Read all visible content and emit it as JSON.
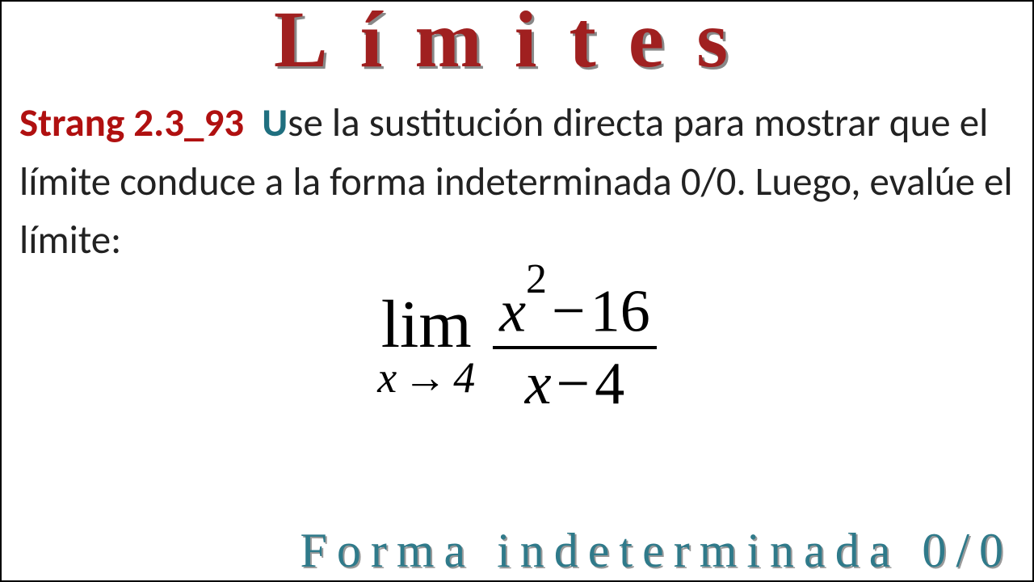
{
  "title": "Límites",
  "problem": {
    "ref": "Strang 2.3_93",
    "capU": "U",
    "rest1": "se la sustitución directa para mostrar que el límite conduce a la forma indeterminada 0/0. Luego, evalúe el límite:"
  },
  "formula": {
    "limWord": "lim",
    "var": "x",
    "arrow": "→",
    "to": "4",
    "numVar": "x",
    "numExp": "2",
    "numOp": "−",
    "numConst": "16",
    "denVar": "x",
    "denOp": "−",
    "denConst": "4"
  },
  "footer": "Forma indeterminada 0/0",
  "colors": {
    "titleColor": "#a02020",
    "titleShadow": "#888888",
    "refColor": "#b01010",
    "capUColor": "#1f6f7f",
    "bodyText": "#222222",
    "footerColor": "#2f7a8a",
    "footerShadow": "#9a9a9a",
    "background": "#ffffff",
    "border": "#000000"
  },
  "typography": {
    "titleFont": "Times New Roman",
    "titleSize": 100,
    "titleLetterSpacing": 40,
    "bodyFont": "Calibri",
    "bodySize": 49,
    "formulaFont": "Times New Roman",
    "formulaSize": 74,
    "limSize": 84,
    "subSize": 54,
    "supSize": 52,
    "footerSize": 60,
    "footerLetterSpacing": 12
  }
}
